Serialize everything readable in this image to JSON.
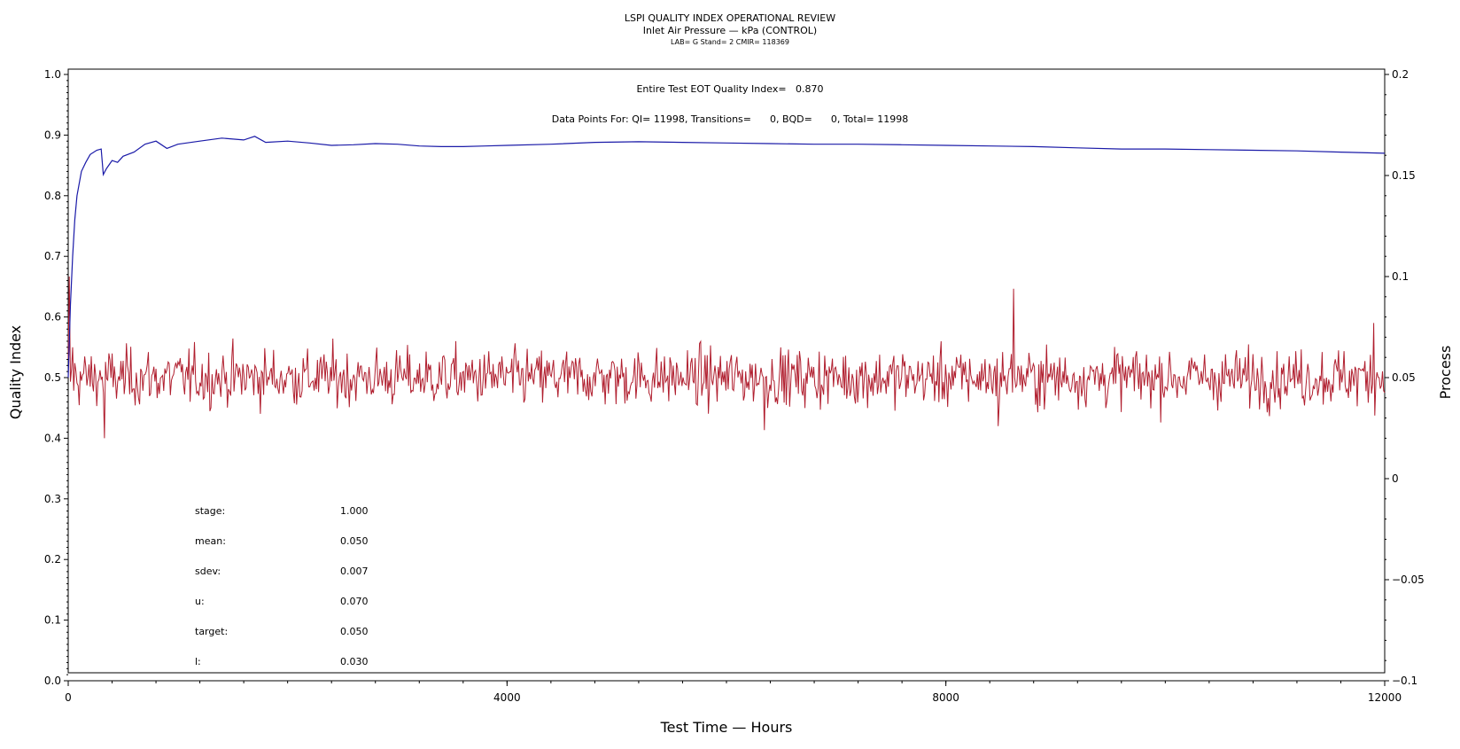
{
  "header": {
    "title": "LSPI QUALITY INDEX OPERATIONAL REVIEW",
    "subtitle": "Inlet Air Pressure — kPa (CONTROL)",
    "lab_line": "LAB= G Stand= 2 CMIR= 118369"
  },
  "info": {
    "quality_index_text": "Entire Test EOT Quality Index=   0.870",
    "data_points_text": "Data Points For: QI= 11998, Transitions=      0, BQD=      0, Total= 11998"
  },
  "stats": [
    {
      "label": "stage:",
      "value": "1.000"
    },
    {
      "label": "mean:",
      "value": "0.050"
    },
    {
      "label": "sdev:",
      "value": "0.007"
    },
    {
      "label": "u:",
      "value": "0.070"
    },
    {
      "label": "target:",
      "value": "0.050"
    },
    {
      "label": "l:",
      "value": "0.030"
    }
  ],
  "chart_data": {
    "type": "line",
    "xlabel": "Test Time — Hours",
    "ylabel_left": "Quality Index",
    "ylabel_right": "Process",
    "xlim": [
      0,
      12000
    ],
    "ylim_left": [
      0.0,
      1.0
    ],
    "ylim_right": [
      -0.1,
      0.2
    ],
    "x_ticks": [
      "0",
      "4000",
      "8000",
      "12000"
    ],
    "y_left_ticks": [
      "0.0",
      "0.1",
      "0.2",
      "0.3",
      "0.4",
      "0.5",
      "0.6",
      "0.7",
      "0.8",
      "0.9",
      "1.0"
    ],
    "y_right_ticks": [
      "−0.1",
      "−0.05",
      "0",
      "0.05",
      "0.1",
      "0.15",
      "0.2"
    ],
    "colors": {
      "quality_index": "#1a1aa8",
      "process": "#b01e2e"
    },
    "series": [
      {
        "axis": "left",
        "x": [
          0,
          20,
          40,
          60,
          80,
          120,
          160,
          200,
          260,
          300,
          320,
          350,
          400,
          450,
          500,
          600,
          700,
          800,
          900,
          1000,
          1200,
          1400,
          1600,
          1700,
          1800,
          2000,
          2200,
          2400,
          2600,
          2800,
          3000,
          3200,
          3400,
          3600,
          3800,
          4000,
          4400,
          4800,
          5200,
          5600,
          6000,
          6400,
          6800,
          7200,
          7600,
          8000,
          8400,
          8800,
          9200,
          9600,
          10000,
          10400,
          10800,
          11200,
          11600,
          12000
        ],
        "y": [
          0.5,
          0.62,
          0.7,
          0.76,
          0.8,
          0.84,
          0.855,
          0.868,
          0.875,
          0.877,
          0.835,
          0.845,
          0.858,
          0.855,
          0.865,
          0.872,
          0.885,
          0.89,
          0.878,
          0.885,
          0.89,
          0.895,
          0.892,
          0.898,
          0.888,
          0.89,
          0.887,
          0.883,
          0.884,
          0.886,
          0.885,
          0.882,
          0.881,
          0.881,
          0.882,
          0.883,
          0.885,
          0.888,
          0.889,
          0.888,
          0.887,
          0.886,
          0.885,
          0.885,
          0.884,
          0.883,
          0.882,
          0.881,
          0.879,
          0.877,
          0.877,
          0.876,
          0.875,
          0.874,
          0.872,
          0.87
        ]
      },
      {
        "axis": "right",
        "generated_from": {
          "n_points": 1200,
          "mean": 0.05,
          "sdev": 0.007
        },
        "notable_points": [
          {
            "x": 15,
            "y": 0.1
          },
          {
            "x": 40,
            "y": 0.065
          },
          {
            "x": 330,
            "y": 0.02
          },
          {
            "x": 6350,
            "y": 0.024
          },
          {
            "x": 8620,
            "y": 0.094
          },
          {
            "x": 8480,
            "y": 0.026
          },
          {
            "x": 11900,
            "y": 0.077
          }
        ]
      }
    ]
  }
}
